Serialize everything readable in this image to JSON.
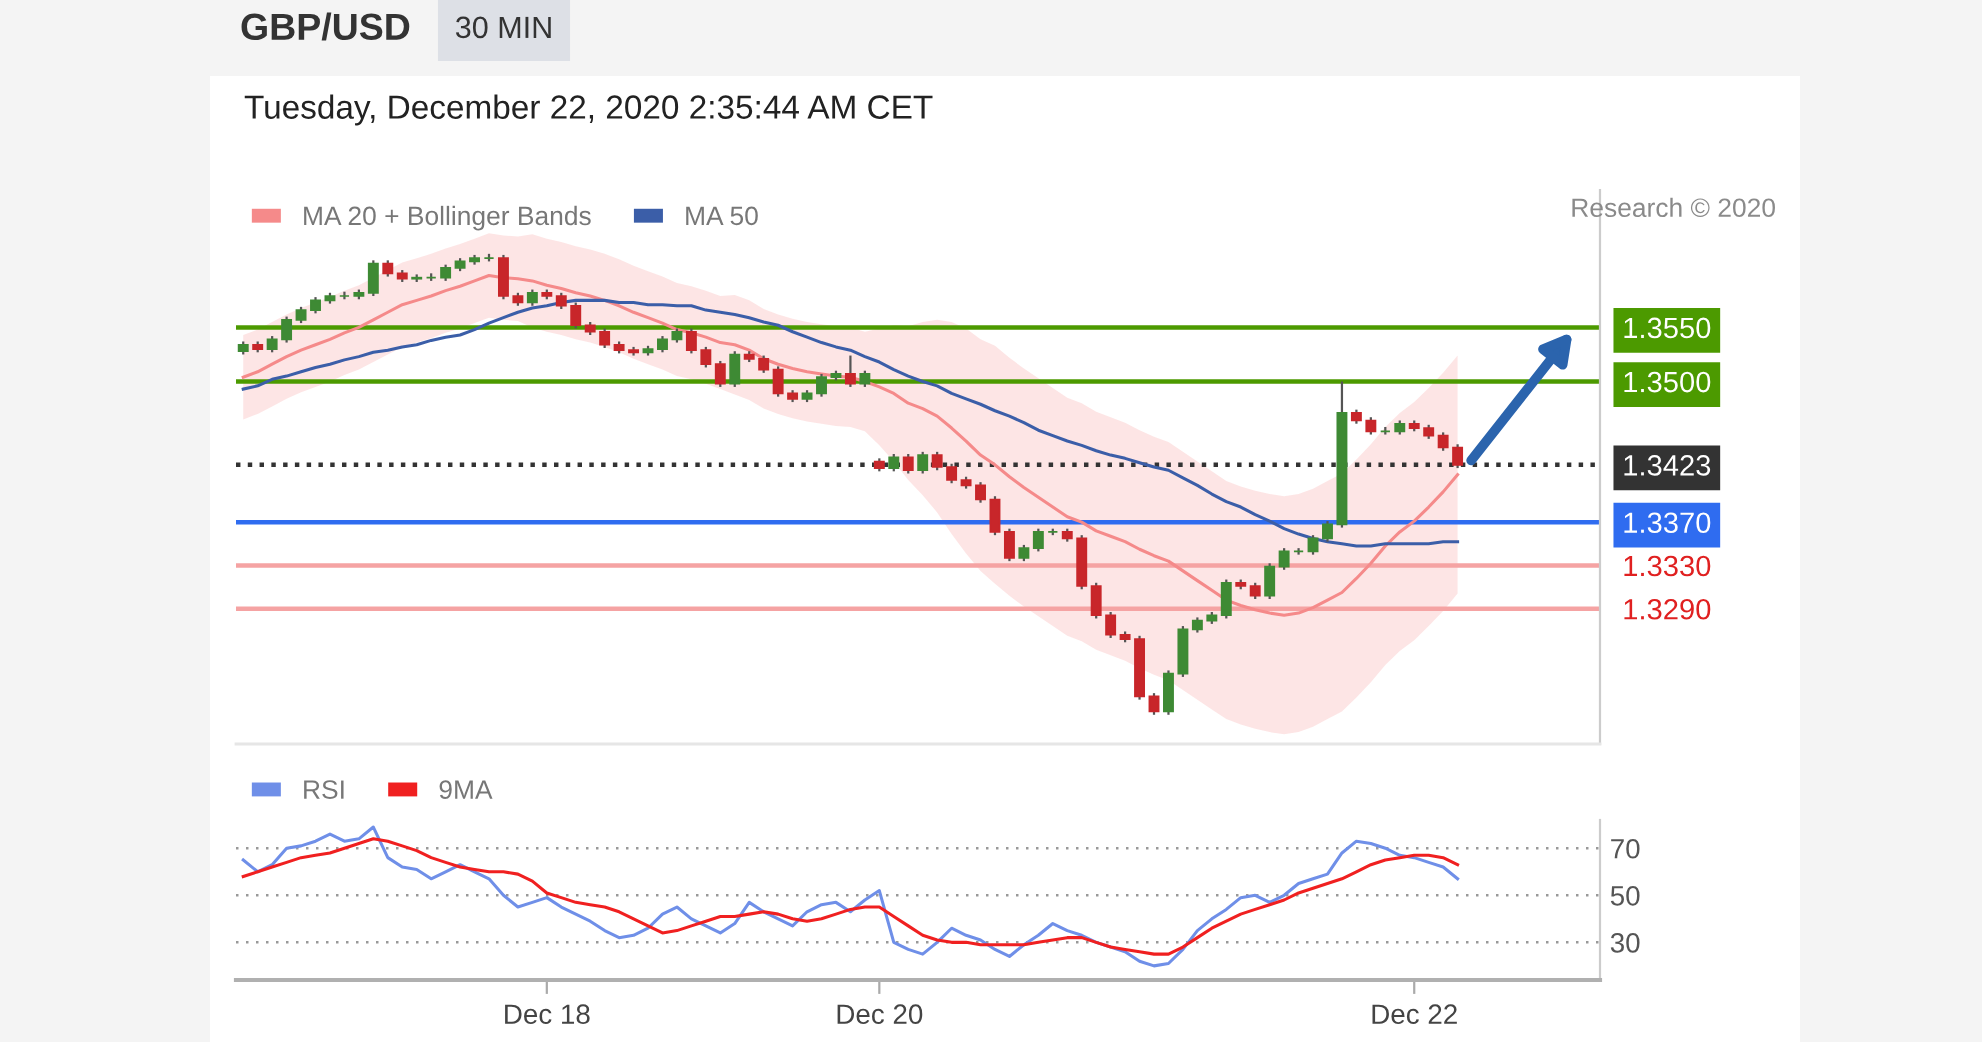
{
  "chart_data": [
    {
      "type": "candlestick",
      "title": "GBP/USD",
      "subtitle": "30 MIN",
      "annotations": [
        "Tuesday, December 22, 2020 2:35:44 AM CET",
        "Research © 2020"
      ],
      "categories": [
        null,
        null,
        null,
        null,
        null,
        null,
        null,
        null,
        null,
        null,
        null,
        null,
        null,
        null,
        null,
        null,
        null,
        null,
        null,
        null,
        null,
        null,
        null,
        null,
        null,
        null,
        null,
        null,
        null,
        null,
        null,
        null,
        null,
        null,
        null,
        null,
        null,
        null,
        null,
        null,
        null,
        null,
        null,
        null,
        null,
        null,
        null,
        null,
        null,
        null,
        null,
        null,
        null,
        null,
        null,
        null,
        null,
        null,
        null,
        null,
        null,
        null,
        null,
        null,
        null,
        null,
        null,
        null,
        null,
        null,
        null,
        null,
        null,
        null,
        null,
        null,
        null,
        null,
        null,
        null,
        null,
        null,
        null,
        null,
        null
      ],
      "ohlc": [
        [
          1.3528,
          1.3537,
          1.3525,
          1.3534
        ],
        [
          1.3534,
          1.3537,
          1.3527,
          1.353
        ],
        [
          1.353,
          1.3542,
          1.3527,
          1.3539
        ],
        [
          1.3539,
          1.356,
          1.3536,
          1.3557
        ],
        [
          1.3557,
          1.3569,
          1.3554,
          1.3566
        ],
        [
          1.3566,
          1.3578,
          1.3563,
          1.3575
        ],
        [
          1.3575,
          1.3582,
          1.3572,
          1.3579
        ],
        [
          1.3579,
          1.3583,
          1.3576,
          1.3579
        ],
        [
          1.3579,
          1.3585,
          1.3576,
          1.3582
        ],
        [
          1.3582,
          1.3612,
          1.3579,
          1.3609
        ],
        [
          1.3609,
          1.3612,
          1.3597,
          1.36
        ],
        [
          1.36,
          1.3603,
          1.3592,
          1.3595
        ],
        [
          1.3595,
          1.3599,
          1.3592,
          1.3596
        ],
        [
          1.3596,
          1.36,
          1.3593,
          1.3596
        ],
        [
          1.3596,
          1.3608,
          1.3593,
          1.3605
        ],
        [
          1.3605,
          1.3614,
          1.3602,
          1.3611
        ],
        [
          1.3611,
          1.3617,
          1.3608,
          1.3614
        ],
        [
          1.3614,
          1.3618,
          1.3611,
          1.3614
        ],
        [
          1.3614,
          1.3617,
          1.3576,
          1.3579
        ],
        [
          1.3579,
          1.3582,
          1.357,
          1.3573
        ],
        [
          1.3573,
          1.3585,
          1.357,
          1.3582
        ],
        [
          1.3582,
          1.3585,
          1.3576,
          1.3579
        ],
        [
          1.3579,
          1.3582,
          1.3567,
          1.357
        ],
        [
          1.357,
          1.3573,
          1.3549,
          1.3552
        ],
        [
          1.3552,
          1.3555,
          1.3543,
          1.3546
        ],
        [
          1.3546,
          1.3549,
          1.3531,
          1.3534
        ],
        [
          1.3534,
          1.3537,
          1.3526,
          1.3529
        ],
        [
          1.3529,
          1.3532,
          1.3524,
          1.3527
        ],
        [
          1.3527,
          1.3533,
          1.3524,
          1.353
        ],
        [
          1.353,
          1.3542,
          1.3527,
          1.3539
        ],
        [
          1.3539,
          1.3549,
          1.3536,
          1.3546
        ],
        [
          1.3546,
          1.3549,
          1.3526,
          1.3529
        ],
        [
          1.3529,
          1.3532,
          1.3513,
          1.3516
        ],
        [
          1.3516,
          1.3519,
          1.3495,
          1.3498
        ],
        [
          1.3498,
          1.3528,
          1.3495,
          1.3525
        ],
        [
          1.3525,
          1.3528,
          1.3518,
          1.3521
        ],
        [
          1.3521,
          1.3524,
          1.3508,
          1.3511
        ],
        [
          1.3511,
          1.3514,
          1.3486,
          1.3489
        ],
        [
          1.3489,
          1.3492,
          1.3481,
          1.3484
        ],
        [
          1.3484,
          1.3492,
          1.3481,
          1.3489
        ],
        [
          1.3489,
          1.3507,
          1.3486,
          1.3504
        ],
        [
          1.3504,
          1.351,
          1.3501,
          1.3507
        ],
        [
          1.3507,
          1.3524,
          1.3495,
          1.3498
        ],
        [
          1.3498,
          1.351,
          1.3495,
          1.3507
        ],
        [
          1.3426,
          1.3429,
          1.3417,
          1.342
        ],
        [
          1.342,
          1.3433,
          1.3417,
          1.343
        ],
        [
          1.343,
          1.3433,
          1.3415,
          1.3418
        ],
        [
          1.3418,
          1.3435,
          1.3415,
          1.3432
        ],
        [
          1.3432,
          1.3435,
          1.3418,
          1.3421
        ],
        [
          1.3421,
          1.3424,
          1.3406,
          1.3409
        ],
        [
          1.3409,
          1.3412,
          1.3401,
          1.3404
        ],
        [
          1.3404,
          1.3407,
          1.3388,
          1.3391
        ],
        [
          1.3391,
          1.3394,
          1.3358,
          1.3361
        ],
        [
          1.3361,
          1.3364,
          1.3334,
          1.3337
        ],
        [
          1.3337,
          1.3349,
          1.3334,
          1.3346
        ],
        [
          1.3346,
          1.3364,
          1.3343,
          1.3361
        ],
        [
          1.3361,
          1.3364,
          1.3358,
          1.3361
        ],
        [
          1.3361,
          1.3364,
          1.3352,
          1.3355
        ],
        [
          1.3355,
          1.3358,
          1.3308,
          1.3311
        ],
        [
          1.3311,
          1.3314,
          1.3281,
          1.3284
        ],
        [
          1.3284,
          1.3287,
          1.3263,
          1.3266
        ],
        [
          1.3266,
          1.3269,
          1.3259,
          1.3262
        ],
        [
          1.3262,
          1.3265,
          1.3206,
          1.3209
        ],
        [
          1.3209,
          1.3212,
          1.3192,
          1.3195
        ],
        [
          1.3195,
          1.3233,
          1.3192,
          1.323
        ],
        [
          1.323,
          1.3274,
          1.3227,
          1.3271
        ],
        [
          1.3271,
          1.3282,
          1.3268,
          1.3279
        ],
        [
          1.3279,
          1.3287,
          1.3276,
          1.3284
        ],
        [
          1.3284,
          1.3317,
          1.3281,
          1.3314
        ],
        [
          1.3314,
          1.3317,
          1.3308,
          1.3311
        ],
        [
          1.3311,
          1.3314,
          1.3299,
          1.3302
        ],
        [
          1.3302,
          1.3332,
          1.3299,
          1.3329
        ],
        [
          1.3329,
          1.3346,
          1.3326,
          1.3343
        ],
        [
          1.3343,
          1.3346,
          1.334,
          1.3343
        ],
        [
          1.3343,
          1.3358,
          1.334,
          1.3355
        ],
        [
          1.3355,
          1.3371,
          1.3352,
          1.3368
        ],
        [
          1.3368,
          1.35,
          1.3365,
          1.3471
        ],
        [
          1.3471,
          1.3474,
          1.3461,
          1.3464
        ],
        [
          1.3464,
          1.3467,
          1.3451,
          1.3454
        ],
        [
          1.3454,
          1.3458,
          1.3451,
          1.3454
        ],
        [
          1.3454,
          1.3464,
          1.3451,
          1.3461
        ],
        [
          1.3461,
          1.3464,
          1.3454,
          1.3457
        ],
        [
          1.3457,
          1.346,
          1.3447,
          1.345
        ],
        [
          1.345,
          1.3453,
          1.3436,
          1.3439
        ],
        [
          1.3439,
          1.3442,
          1.342,
          1.3423
        ]
      ],
      "series": [
        {
          "name": "MA 20 + Bollinger Bands",
          "type": "line",
          "color": "#f58a8a",
          "values": [
            1.3504,
            1.3509,
            1.3516,
            1.3523,
            1.3529,
            1.3534,
            1.3539,
            1.3545,
            1.355,
            1.3557,
            1.3564,
            1.3571,
            1.3575,
            1.3579,
            1.3584,
            1.3588,
            1.3593,
            1.3598,
            1.3596,
            1.3595,
            1.3593,
            1.3589,
            1.3586,
            1.3582,
            1.3579,
            1.3575,
            1.357,
            1.3564,
            1.3559,
            1.3554,
            1.3548,
            1.3545,
            1.3541,
            1.3536,
            1.3534,
            1.3529,
            1.3521,
            1.3516,
            1.3512,
            1.3509,
            1.3507,
            1.3505,
            1.3504,
            1.35,
            1.3495,
            1.3489,
            1.348,
            1.3475,
            1.3468,
            1.3457,
            1.3445,
            1.3432,
            1.3423,
            1.3412,
            1.3402,
            1.3393,
            1.3384,
            1.3375,
            1.337,
            1.3362,
            1.3357,
            1.3352,
            1.3345,
            1.3339,
            1.3334,
            1.3325,
            1.3316,
            1.3307,
            1.3298,
            1.3293,
            1.3289,
            1.3286,
            1.3284,
            1.3286,
            1.3291,
            1.3298,
            1.3305,
            1.3318,
            1.3332,
            1.3348,
            1.3361,
            1.3371,
            1.3384,
            1.3398,
            1.3414
          ],
          "upper": [
            1.3543,
            1.3548,
            1.3555,
            1.3562,
            1.3568,
            1.3573,
            1.3578,
            1.3584,
            1.3589,
            1.3596,
            1.3603,
            1.361,
            1.3614,
            1.3618,
            1.3623,
            1.3627,
            1.3632,
            1.3637,
            1.3635,
            1.3634,
            1.3636,
            1.3632,
            1.3629,
            1.3625,
            1.3622,
            1.3618,
            1.3613,
            1.3607,
            1.3602,
            1.3597,
            1.3591,
            1.3588,
            1.3584,
            1.3579,
            1.358,
            1.3575,
            1.3567,
            1.3562,
            1.3558,
            1.3555,
            1.3553,
            1.3551,
            1.355,
            1.3546,
            1.3549,
            1.3552,
            1.3551,
            1.3555,
            1.3557,
            1.3555,
            1.3549,
            1.3539,
            1.3533,
            1.3522,
            1.3512,
            1.3503,
            1.3494,
            1.3485,
            1.348,
            1.3472,
            1.3467,
            1.3462,
            1.3455,
            1.3449,
            1.3444,
            1.3435,
            1.3426,
            1.3417,
            1.3408,
            1.3403,
            1.3399,
            1.3396,
            1.3394,
            1.3396,
            1.3401,
            1.3408,
            1.3415,
            1.3428,
            1.3442,
            1.3458,
            1.3471,
            1.3481,
            1.3494,
            1.3508,
            1.3524
          ],
          "lower": [
            1.3465,
            1.347,
            1.3477,
            1.3484,
            1.349,
            1.3495,
            1.35,
            1.3506,
            1.3511,
            1.3518,
            1.3525,
            1.3532,
            1.3536,
            1.354,
            1.3545,
            1.3549,
            1.3554,
            1.3559,
            1.3557,
            1.3556,
            1.355,
            1.3546,
            1.3543,
            1.3539,
            1.3536,
            1.3532,
            1.3527,
            1.3521,
            1.3516,
            1.3511,
            1.3505,
            1.3502,
            1.3498,
            1.3493,
            1.3488,
            1.3483,
            1.3475,
            1.347,
            1.3466,
            1.3463,
            1.3461,
            1.3459,
            1.3458,
            1.3454,
            1.3441,
            1.3426,
            1.3409,
            1.3395,
            1.3379,
            1.3359,
            1.3341,
            1.3325,
            1.3313,
            1.3302,
            1.3292,
            1.3283,
            1.3274,
            1.3265,
            1.326,
            1.3252,
            1.3247,
            1.3242,
            1.3235,
            1.3229,
            1.3224,
            1.3215,
            1.3206,
            1.3197,
            1.3188,
            1.3183,
            1.3179,
            1.3176,
            1.3174,
            1.3176,
            1.3181,
            1.3188,
            1.3195,
            1.3208,
            1.3222,
            1.3238,
            1.3251,
            1.3261,
            1.3274,
            1.3288,
            1.3304
          ]
        },
        {
          "name": "MA 50",
          "type": "line",
          "color": "#3b5ea8",
          "values": [
            1.3493,
            1.3496,
            1.3502,
            1.3505,
            1.3509,
            1.3513,
            1.3516,
            1.352,
            1.3523,
            1.3527,
            1.3529,
            1.3532,
            1.3534,
            1.3538,
            1.3541,
            1.3543,
            1.3548,
            1.3554,
            1.3559,
            1.3564,
            1.3568,
            1.357,
            1.3573,
            1.3575,
            1.3575,
            1.3575,
            1.3573,
            1.3573,
            1.3571,
            1.3571,
            1.357,
            1.357,
            1.3566,
            1.3564,
            1.3562,
            1.3559,
            1.3555,
            1.3552,
            1.3546,
            1.3541,
            1.3536,
            1.3532,
            1.3529,
            1.3523,
            1.3518,
            1.3511,
            1.3505,
            1.35,
            1.3496,
            1.3489,
            1.3484,
            1.3479,
            1.3473,
            1.3468,
            1.3462,
            1.3455,
            1.345,
            1.3445,
            1.3441,
            1.3436,
            1.3432,
            1.3429,
            1.3425,
            1.3421,
            1.3418,
            1.3411,
            1.3404,
            1.3396,
            1.3389,
            1.3384,
            1.3377,
            1.3371,
            1.3364,
            1.3359,
            1.3355,
            1.3352,
            1.335,
            1.3348,
            1.3348,
            1.335,
            1.335,
            1.335,
            1.335,
            1.3352,
            1.3352
          ]
        }
      ],
      "ref_lines": [
        {
          "axis": "y",
          "value": 1.355,
          "color": "#4c9a00",
          "line_style": "solid"
        },
        {
          "axis": "y",
          "value": 1.35,
          "color": "#4c9a00",
          "line_style": "solid"
        },
        {
          "axis": "y",
          "value": 1.3423,
          "color": "#333333",
          "line_style": "dotted"
        },
        {
          "axis": "y",
          "value": 1.337,
          "color": "#2f6cf0",
          "line_style": "solid"
        },
        {
          "axis": "y",
          "value": 1.333,
          "color": "#f5a3a3",
          "line_style": "solid"
        },
        {
          "axis": "y",
          "value": 1.329,
          "color": "#f5a3a3",
          "line_style": "solid"
        }
      ],
      "ylim": [
        1.3165,
        1.3677
      ],
      "yticks": [
        {
          "value": 1.329,
          "label": "1.3290"
        },
        {
          "value": 1.333,
          "label": "1.3330"
        },
        {
          "value": 1.337,
          "label": "1.3370"
        },
        {
          "value": 1.3423,
          "label": "1.3423"
        },
        {
          "value": 1.35,
          "label": "1.3500"
        },
        {
          "value": 1.355,
          "label": "1.3550"
        }
      ],
      "legend": "top left",
      "tick_labels": "y"
    },
    {
      "type": "line",
      "categories": [
        null,
        null,
        null,
        null,
        null,
        null,
        null,
        null,
        null,
        null,
        null,
        null,
        null,
        null,
        null,
        null,
        null,
        null,
        null,
        null,
        null,
        "Dec 18",
        null,
        null,
        null,
        null,
        null,
        null,
        null,
        null,
        null,
        null,
        null,
        null,
        null,
        null,
        null,
        null,
        null,
        null,
        null,
        null,
        null,
        null,
        "Dec 20",
        null,
        null,
        null,
        null,
        null,
        null,
        null,
        null,
        null,
        null,
        null,
        null,
        null,
        null,
        null,
        null,
        null,
        null,
        null,
        null,
        null,
        null,
        null,
        null,
        null,
        null,
        null,
        null,
        null,
        null,
        null,
        null,
        null,
        null,
        null,
        null,
        "Dec 22",
        null,
        null,
        null
      ],
      "series": [
        {
          "name": "RSI",
          "color": "#6f8fe8",
          "values": [
            65,
            60,
            63,
            70,
            71,
            73,
            76,
            73,
            74,
            79,
            66,
            62,
            61,
            57,
            60,
            63,
            60,
            57,
            50,
            45,
            47,
            49,
            45,
            42,
            39,
            35,
            32,
            33,
            36,
            42,
            45,
            40,
            37,
            34,
            38,
            47,
            43,
            40,
            37,
            43,
            46,
            47,
            43,
            48,
            52,
            30,
            27,
            25,
            30,
            36,
            33,
            31,
            27,
            24,
            29,
            33,
            38,
            35,
            33,
            30,
            28,
            26,
            22,
            20,
            21,
            27,
            35,
            40,
            44,
            49,
            50,
            47,
            50,
            55,
            57,
            59,
            68,
            73,
            72,
            70,
            67,
            66,
            64,
            62,
            57
          ]
        },
        {
          "name": "9MA",
          "color": "#f02020",
          "values": [
            58,
            60,
            62,
            64,
            66,
            67,
            68,
            70,
            72,
            74,
            73,
            71,
            69,
            66,
            64,
            62,
            61,
            60,
            60,
            59,
            56,
            51,
            49,
            47,
            46,
            45,
            43,
            40,
            37,
            34,
            35,
            37,
            39,
            41,
            41,
            42,
            43,
            42,
            40,
            39,
            40,
            42,
            44,
            45,
            45,
            41,
            37,
            33,
            31,
            30,
            30,
            29,
            29,
            29,
            29,
            30,
            31,
            32,
            32,
            30,
            28,
            27,
            26,
            25,
            25,
            28,
            32,
            36,
            39,
            42,
            44,
            46,
            48,
            51,
            53,
            55,
            57,
            60,
            63,
            65,
            66,
            67,
            67,
            66,
            63
          ]
        }
      ],
      "ylim": [
        14,
        82
      ],
      "yticks": [
        30,
        50,
        70
      ],
      "grid": "y",
      "legend": "top left"
    }
  ]
}
